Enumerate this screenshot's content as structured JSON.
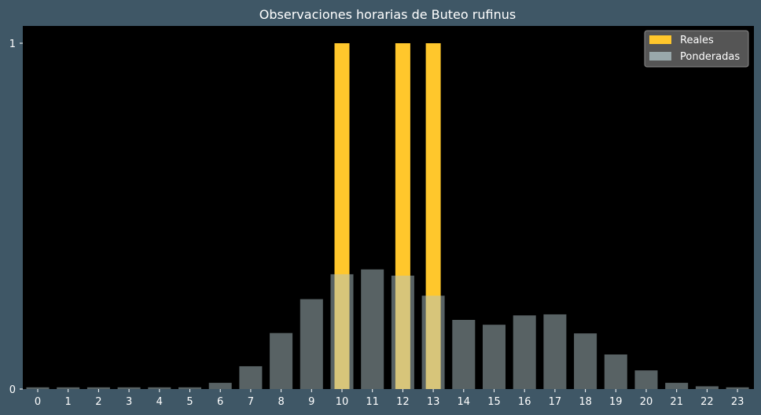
{
  "chart_data": {
    "type": "bar",
    "title": "Observaciones horarias de Buteo rufinus",
    "xlabel": "",
    "ylabel": "",
    "categories": [
      "0",
      "1",
      "2",
      "3",
      "4",
      "5",
      "6",
      "7",
      "8",
      "9",
      "10",
      "11",
      "12",
      "13",
      "14",
      "15",
      "16",
      "17",
      "18",
      "19",
      "20",
      "21",
      "22",
      "23"
    ],
    "ylim": [
      0,
      1.05
    ],
    "yticks": [
      "0",
      "1"
    ],
    "grid": false,
    "legend_position": "top-right",
    "series": [
      {
        "name": "Reales",
        "color": "#ffc72c",
        "values": [
          0,
          0,
          0,
          0,
          0,
          0,
          0,
          0,
          0,
          0,
          1,
          0,
          1,
          1,
          0,
          0,
          0,
          0,
          0,
          0,
          0,
          0,
          0,
          0
        ]
      },
      {
        "name": "Ponderadas",
        "color": "#b0c4c8",
        "opacity": 0.5,
        "values": [
          0.005,
          0.005,
          0.005,
          0.005,
          0.005,
          0.005,
          0.018,
          0.066,
          0.162,
          0.26,
          0.332,
          0.346,
          0.328,
          0.27,
          0.2,
          0.186,
          0.213,
          0.216,
          0.161,
          0.1,
          0.054,
          0.018,
          0.008,
          0.005
        ]
      }
    ]
  }
}
